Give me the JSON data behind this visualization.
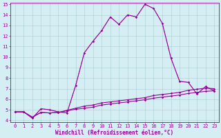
{
  "xlabel": "Windchill (Refroidissement éolien,°C)",
  "x": [
    0,
    1,
    2,
    3,
    4,
    5,
    6,
    7,
    8,
    9,
    10,
    11,
    12,
    13,
    14,
    15,
    16,
    17,
    18,
    19,
    20,
    21,
    22,
    23
  ],
  "main_line": [
    4.8,
    4.8,
    4.2,
    5.1,
    5.0,
    4.8,
    4.7,
    7.3,
    10.4,
    11.5,
    12.5,
    13.8,
    13.1,
    14.0,
    13.8,
    15.0,
    14.6,
    13.2,
    9.9,
    7.7,
    7.6,
    6.5,
    7.2,
    6.8
  ],
  "dotted_line": [
    4.8,
    4.8,
    4.2,
    5.1,
    5.0,
    4.8,
    4.7,
    7.3,
    10.4,
    11.5,
    12.5,
    13.8,
    13.1,
    14.0,
    13.8,
    15.0,
    14.6,
    13.2,
    9.9,
    7.7,
    7.6,
    6.5,
    7.2,
    6.8
  ],
  "flat_line1": [
    4.8,
    4.8,
    4.3,
    4.75,
    4.7,
    4.75,
    4.9,
    5.05,
    5.15,
    5.25,
    5.45,
    5.55,
    5.65,
    5.75,
    5.85,
    5.95,
    6.1,
    6.2,
    6.3,
    6.4,
    6.55,
    6.65,
    6.75,
    6.8
  ],
  "flat_line2": [
    4.8,
    4.8,
    4.3,
    4.75,
    4.7,
    4.75,
    4.95,
    5.15,
    5.35,
    5.45,
    5.65,
    5.75,
    5.85,
    5.95,
    6.05,
    6.15,
    6.35,
    6.45,
    6.55,
    6.65,
    6.85,
    6.95,
    7.05,
    7.0
  ],
  "color": "#990099",
  "bg_color": "#d4eef4",
  "grid_color": "#aacccc",
  "ylim_min": 4,
  "ylim_max": 15,
  "xlim_min": 0,
  "xlim_max": 23,
  "tick_fontsize": 5.0,
  "xlabel_fontsize": 5.5
}
